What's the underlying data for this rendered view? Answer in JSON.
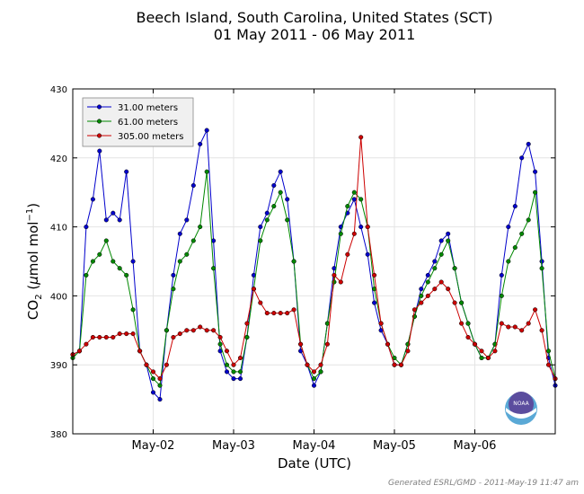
{
  "chart_data": {
    "type": "line",
    "title_line1": "Beech Island, South Carolina, United States (SCT)",
    "title_line2": "01 May 2011 - 06 May 2011",
    "xlabel": "Date (UTC)",
    "ylabel_pre": "CO",
    "ylabel_sub": "2",
    "ylabel_mid": " (",
    "ylabel_mu": "μ",
    "ylabel_unit": "mol mol",
    "ylabel_sup": "−1",
    "ylabel_end": ")",
    "ylim": [
      380,
      430
    ],
    "xlim": [
      "2011-05-01 00:00",
      "2011-05-07 00:00"
    ],
    "yticks": [
      380,
      390,
      400,
      410,
      420,
      430
    ],
    "xticks": [
      {
        "t": "2011-05-02 00:00",
        "label": "May-02"
      },
      {
        "t": "2011-05-03 00:00",
        "label": "May-03"
      },
      {
        "t": "2011-05-04 00:00",
        "label": "May-04"
      },
      {
        "t": "2011-05-05 00:00",
        "label": "May-05"
      },
      {
        "t": "2011-05-06 00:00",
        "label": "May-06"
      }
    ],
    "grid": true,
    "legend_position": "top-left",
    "series": [
      {
        "name": "31.00 meters",
        "color": "#0000cc",
        "x": [
          "2011-05-01 00:00",
          "2011-05-01 02:00",
          "2011-05-01 04:00",
          "2011-05-01 06:00",
          "2011-05-01 08:00",
          "2011-05-01 10:00",
          "2011-05-01 12:00",
          "2011-05-01 14:00",
          "2011-05-01 16:00",
          "2011-05-01 18:00",
          "2011-05-01 20:00",
          "2011-05-01 22:00",
          "2011-05-02 00:00",
          "2011-05-02 02:00",
          "2011-05-02 04:00",
          "2011-05-02 06:00",
          "2011-05-02 08:00",
          "2011-05-02 10:00",
          "2011-05-02 12:00",
          "2011-05-02 14:00",
          "2011-05-02 16:00",
          "2011-05-02 18:00",
          "2011-05-02 20:00",
          "2011-05-02 22:00",
          "2011-05-03 00:00",
          "2011-05-03 02:00",
          "2011-05-03 04:00",
          "2011-05-03 06:00",
          "2011-05-03 08:00",
          "2011-05-03 10:00",
          "2011-05-03 12:00",
          "2011-05-03 14:00",
          "2011-05-03 16:00",
          "2011-05-03 18:00",
          "2011-05-03 20:00",
          "2011-05-03 22:00",
          "2011-05-04 00:00",
          "2011-05-04 02:00",
          "2011-05-04 04:00",
          "2011-05-04 06:00",
          "2011-05-04 08:00",
          "2011-05-04 10:00",
          "2011-05-04 12:00",
          "2011-05-04 14:00",
          "2011-05-04 16:00",
          "2011-05-04 18:00",
          "2011-05-04 20:00",
          "2011-05-04 22:00",
          "2011-05-05 00:00",
          "2011-05-05 02:00",
          "2011-05-05 04:00",
          "2011-05-05 06:00",
          "2011-05-05 08:00",
          "2011-05-05 10:00",
          "2011-05-05 12:00",
          "2011-05-05 14:00",
          "2011-05-05 16:00",
          "2011-05-05 18:00",
          "2011-05-05 20:00",
          "2011-05-05 22:00",
          "2011-05-06 00:00",
          "2011-05-06 02:00",
          "2011-05-06 04:00",
          "2011-05-06 06:00",
          "2011-05-06 08:00",
          "2011-05-06 10:00",
          "2011-05-06 12:00",
          "2011-05-06 14:00",
          "2011-05-06 16:00",
          "2011-05-06 18:00",
          "2011-05-06 20:00",
          "2011-05-06 22:00",
          "2011-05-07 00:00"
        ],
        "values": [
          391.5,
          392,
          410,
          414,
          421,
          411,
          412,
          411,
          418,
          405,
          392,
          390,
          386,
          385,
          395,
          403,
          409,
          411,
          416,
          422,
          424,
          408,
          392,
          389,
          388,
          388,
          394,
          403,
          410,
          412,
          416,
          418,
          414,
          405,
          392,
          390,
          387,
          389,
          396,
          404,
          410,
          412,
          414,
          410,
          406,
          399,
          395,
          393,
          390,
          390,
          393,
          397,
          401,
          403,
          405,
          408,
          409,
          404,
          399,
          396,
          393,
          391,
          391,
          393,
          403,
          410,
          413,
          420,
          422,
          418,
          405,
          391,
          387
        ]
      },
      {
        "name": "61.00 meters",
        "color": "#008800",
        "x": [
          "2011-05-01 00:00",
          "2011-05-01 02:00",
          "2011-05-01 04:00",
          "2011-05-01 06:00",
          "2011-05-01 08:00",
          "2011-05-01 10:00",
          "2011-05-01 12:00",
          "2011-05-01 14:00",
          "2011-05-01 16:00",
          "2011-05-01 18:00",
          "2011-05-01 20:00",
          "2011-05-01 22:00",
          "2011-05-02 00:00",
          "2011-05-02 02:00",
          "2011-05-02 04:00",
          "2011-05-02 06:00",
          "2011-05-02 08:00",
          "2011-05-02 10:00",
          "2011-05-02 12:00",
          "2011-05-02 14:00",
          "2011-05-02 16:00",
          "2011-05-02 18:00",
          "2011-05-02 20:00",
          "2011-05-02 22:00",
          "2011-05-03 00:00",
          "2011-05-03 02:00",
          "2011-05-03 04:00",
          "2011-05-03 06:00",
          "2011-05-03 08:00",
          "2011-05-03 10:00",
          "2011-05-03 12:00",
          "2011-05-03 14:00",
          "2011-05-03 16:00",
          "2011-05-03 18:00",
          "2011-05-03 20:00",
          "2011-05-03 22:00",
          "2011-05-04 00:00",
          "2011-05-04 02:00",
          "2011-05-04 04:00",
          "2011-05-04 06:00",
          "2011-05-04 08:00",
          "2011-05-04 10:00",
          "2011-05-04 12:00",
          "2011-05-04 14:00",
          "2011-05-04 16:00",
          "2011-05-04 18:00",
          "2011-05-04 20:00",
          "2011-05-04 22:00",
          "2011-05-05 00:00",
          "2011-05-05 02:00",
          "2011-05-05 04:00",
          "2011-05-05 06:00",
          "2011-05-05 08:00",
          "2011-05-05 10:00",
          "2011-05-05 12:00",
          "2011-05-05 14:00",
          "2011-05-05 16:00",
          "2011-05-05 18:00",
          "2011-05-05 20:00",
          "2011-05-05 22:00",
          "2011-05-06 00:00",
          "2011-05-06 02:00",
          "2011-05-06 04:00",
          "2011-05-06 06:00",
          "2011-05-06 08:00",
          "2011-05-06 10:00",
          "2011-05-06 12:00",
          "2011-05-06 14:00",
          "2011-05-06 16:00",
          "2011-05-06 18:00",
          "2011-05-06 20:00",
          "2011-05-06 22:00",
          "2011-05-07 00:00"
        ],
        "values": [
          391,
          392,
          403,
          405,
          406,
          408,
          405,
          404,
          403,
          398,
          392,
          390,
          388,
          387,
          395,
          401,
          405,
          406,
          408,
          410,
          418,
          404,
          393,
          390,
          389,
          389,
          394,
          401,
          408,
          411,
          413,
          415,
          411,
          405,
          393,
          390,
          388,
          389,
          396,
          402,
          409,
          413,
          415,
          414,
          410,
          401,
          396,
          393,
          391,
          390,
          393,
          397,
          400,
          402,
          404,
          406,
          408,
          404,
          399,
          396,
          393,
          391,
          391,
          393,
          400,
          405,
          407,
          409,
          411,
          415,
          404,
          392,
          388
        ]
      },
      {
        "name": "305.00 meters",
        "color": "#cc0000",
        "x": [
          "2011-05-01 00:00",
          "2011-05-01 02:00",
          "2011-05-01 04:00",
          "2011-05-01 06:00",
          "2011-05-01 08:00",
          "2011-05-01 10:00",
          "2011-05-01 12:00",
          "2011-05-01 14:00",
          "2011-05-01 16:00",
          "2011-05-01 18:00",
          "2011-05-01 20:00",
          "2011-05-01 22:00",
          "2011-05-02 00:00",
          "2011-05-02 02:00",
          "2011-05-02 04:00",
          "2011-05-02 06:00",
          "2011-05-02 08:00",
          "2011-05-02 10:00",
          "2011-05-02 12:00",
          "2011-05-02 14:00",
          "2011-05-02 16:00",
          "2011-05-02 18:00",
          "2011-05-02 20:00",
          "2011-05-02 22:00",
          "2011-05-03 00:00",
          "2011-05-03 02:00",
          "2011-05-03 04:00",
          "2011-05-03 06:00",
          "2011-05-03 08:00",
          "2011-05-03 10:00",
          "2011-05-03 12:00",
          "2011-05-03 14:00",
          "2011-05-03 16:00",
          "2011-05-03 18:00",
          "2011-05-03 20:00",
          "2011-05-03 22:00",
          "2011-05-04 00:00",
          "2011-05-04 02:00",
          "2011-05-04 04:00",
          "2011-05-04 06:00",
          "2011-05-04 08:00",
          "2011-05-04 10:00",
          "2011-05-04 12:00",
          "2011-05-04 14:00",
          "2011-05-04 16:00",
          "2011-05-04 18:00",
          "2011-05-04 20:00",
          "2011-05-04 22:00",
          "2011-05-05 00:00",
          "2011-05-05 02:00",
          "2011-05-05 04:00",
          "2011-05-05 06:00",
          "2011-05-05 08:00",
          "2011-05-05 10:00",
          "2011-05-05 12:00",
          "2011-05-05 14:00",
          "2011-05-05 16:00",
          "2011-05-05 18:00",
          "2011-05-05 20:00",
          "2011-05-05 22:00",
          "2011-05-06 00:00",
          "2011-05-06 02:00",
          "2011-05-06 04:00",
          "2011-05-06 06:00",
          "2011-05-06 08:00",
          "2011-05-06 10:00",
          "2011-05-06 12:00",
          "2011-05-06 14:00",
          "2011-05-06 16:00",
          "2011-05-06 18:00",
          "2011-05-06 20:00",
          "2011-05-06 22:00",
          "2011-05-07 00:00"
        ],
        "values": [
          391.5,
          392,
          393,
          394,
          394,
          394,
          394,
          394.5,
          394.5,
          394.5,
          392,
          390,
          389,
          388,
          390,
          394,
          394.5,
          395,
          395,
          395.5,
          395,
          395,
          394,
          392,
          390,
          391,
          396,
          401,
          399,
          397.5,
          397.5,
          397.5,
          397.5,
          398,
          393,
          390,
          389,
          390,
          393,
          403,
          402,
          406,
          409,
          423,
          410,
          403,
          396,
          393,
          390,
          390,
          392,
          398,
          399,
          400,
          401,
          402,
          401,
          399,
          396,
          394,
          393,
          392,
          391,
          392,
          396,
          395.5,
          395.5,
          395,
          396,
          398,
          395,
          390,
          388
        ]
      }
    ]
  },
  "footer": "Generated ESRL/GMD - 2011-May-19 11:47 am",
  "logo_text": "NOAA"
}
